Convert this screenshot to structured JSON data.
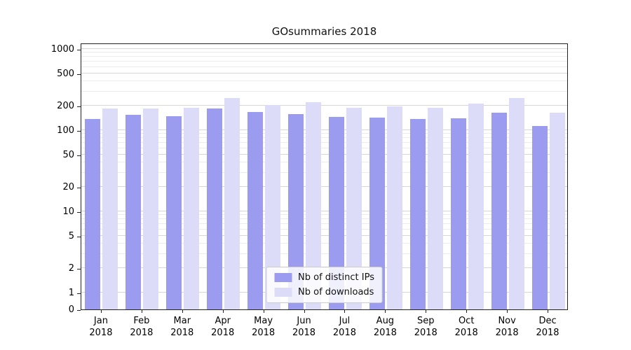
{
  "title": "GOsummaries 2018",
  "chart_data": {
    "type": "bar",
    "title": "GOsummaries 2018",
    "categories": [
      "Jan 2018",
      "Feb 2018",
      "Mar 2018",
      "Apr 2018",
      "May 2018",
      "Jun 2018",
      "Jul 2018",
      "Aug 2018",
      "Sep 2018",
      "Oct 2018",
      "Nov 2018",
      "Dec 2018"
    ],
    "series": [
      {
        "name": "Nb of distinct IPs",
        "color": "#9b9bef",
        "values": [
          138,
          155,
          150,
          185,
          167,
          157,
          145,
          142,
          137,
          140,
          163,
          113
        ]
      },
      {
        "name": "Nb of downloads",
        "color": "#dcdcf8",
        "values": [
          185,
          185,
          190,
          250,
          205,
          220,
          190,
          195,
          188,
          212,
          250,
          165
        ]
      }
    ],
    "xlabel": "",
    "ylabel": "",
    "y_scale": "symlog",
    "y_ticks": [
      0,
      1,
      2,
      5,
      10,
      20,
      50,
      100,
      200,
      500,
      1000
    ],
    "ylim": [
      0,
      1200
    ],
    "grid": true,
    "legend_position": "lower center"
  }
}
